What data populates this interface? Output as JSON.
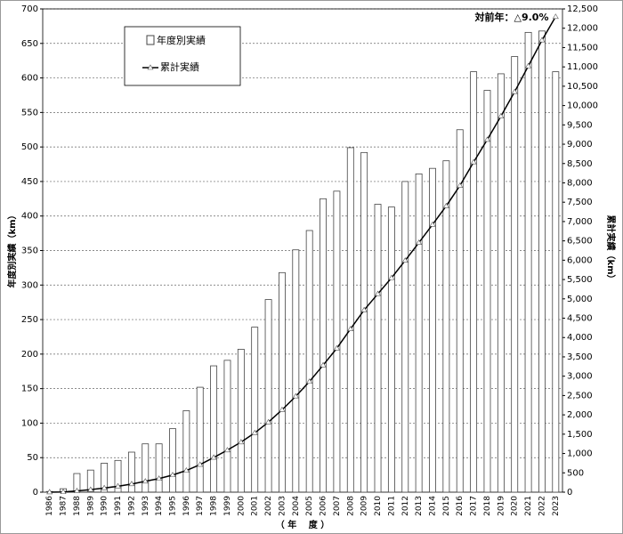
{
  "chart_data": {
    "type": "bar_line",
    "annotation": "対前年：△9.0%",
    "y_label": "年度別実績（km）",
    "y2_label": "累計実績（km）",
    "x_label": "（ 年　 度 ）",
    "categories": [
      "1986",
      "1987",
      "1988",
      "1989",
      "1990",
      "1991",
      "1992",
      "1993",
      "1994",
      "1995",
      "1996",
      "1997",
      "1998",
      "1999",
      "2000",
      "2001",
      "2002",
      "2003",
      "2004",
      "2005",
      "2006",
      "2007",
      "2008",
      "2009",
      "2010",
      "2011",
      "2012",
      "2013",
      "2014",
      "2015",
      "2016",
      "2017",
      "2018",
      "2019",
      "2020",
      "2021",
      "2022",
      "2023"
    ],
    "series": [
      {
        "name": "年度別実績",
        "color": "#ffffff",
        "values": [
          1,
          5,
          27,
          32,
          42,
          46,
          58,
          70,
          70,
          92,
          118,
          152,
          183,
          191,
          207,
          239,
          279,
          318,
          351,
          379,
          425,
          436,
          499,
          492,
          417,
          413,
          450,
          461,
          469,
          480,
          525,
          609,
          582,
          606,
          631,
          666,
          668,
          609
        ]
      },
      {
        "name": "累計実績",
        "color": "#000000",
        "axis": "y2",
        "values": [
          1,
          6,
          33,
          65,
          107,
          153,
          211,
          281,
          351,
          443,
          561,
          713,
          896,
          1087,
          1294,
          1533,
          1812,
          2130,
          2481,
          2860,
          3285,
          3721,
          4220,
          4712,
          5129,
          5542,
          5992,
          6453,
          6922,
          7402,
          7927,
          8536,
          9118,
          9724,
          10355,
          11021,
          11689,
          12298
        ]
      }
    ],
    "ylim": [
      0,
      700
    ],
    "yticks": [
      0,
      50,
      100,
      150,
      200,
      250,
      300,
      350,
      400,
      450,
      500,
      550,
      600,
      650,
      700
    ],
    "y2lim": [
      0,
      12500
    ],
    "y2ticks": [
      0,
      500,
      {
        "value": 1000,
        "label": "1,000"
      },
      {
        "value": 1500,
        "label": "1,500"
      },
      {
        "value": 2000,
        "label": "2,000"
      },
      {
        "value": 2500,
        "label": "2,500"
      },
      {
        "value": 3000,
        "label": "3,000"
      },
      {
        "value": 3500,
        "label": "3,500"
      },
      {
        "value": 4000,
        "label": "4,000"
      },
      {
        "value": 4500,
        "label": "4,500"
      },
      {
        "value": 5000,
        "label": "5,000"
      },
      {
        "value": 5500,
        "label": "5,500"
      },
      {
        "value": 6000,
        "label": "6,000"
      },
      {
        "value": 6500,
        "label": "6,500"
      },
      {
        "value": 7000,
        "label": "7,000"
      },
      {
        "value": 7500,
        "label": "7,500"
      },
      {
        "value": 8000,
        "label": "8,000"
      },
      {
        "value": 8500,
        "label": "8,500"
      },
      {
        "value": 9000,
        "label": "9,000"
      },
      {
        "value": 9500,
        "label": "9,500"
      },
      {
        "value": 10000,
        "label": "10,000"
      },
      {
        "value": 10500,
        "label": "10,500"
      },
      {
        "value": 11000,
        "label": "11,000"
      },
      {
        "value": 11500,
        "label": "11,500"
      },
      {
        "value": 12000,
        "label": "12,000"
      },
      {
        "value": 12500,
        "label": "12,500"
      }
    ],
    "grid": true
  }
}
